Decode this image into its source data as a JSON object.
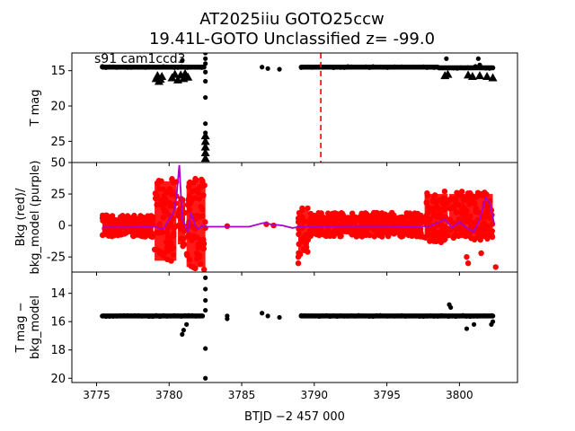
{
  "title_line1": "AT2025iiu  GOTO25ccw",
  "title_line2": "19.41L-GOTO Unclassified z= -99.0",
  "panel1_annotation": "s91 cam1ccd3",
  "xlabel": "BTJD −2 457 000",
  "x_ticks": [
    3775,
    3780,
    3785,
    3790,
    3795,
    3800
  ],
  "xlim": [
    3773.3,
    3804.0
  ],
  "colors": {
    "mag": "#000000",
    "bkg": "#ff0000",
    "model": "#aa00cc",
    "marker": "#ff0000"
  },
  "chart_data": [
    {
      "type": "scatter",
      "panel": "top",
      "ylabel": "T mag",
      "ylim": [
        28.0,
        12.5
      ],
      "inverted_y": true,
      "y_ticks": [
        15,
        20,
        25
      ],
      "vertical_marker_x": 3790.45,
      "series": [
        {
          "marker": "circle",
          "segments": [
            {
              "x0": 3775.4,
              "x1": 3780.9,
              "y": 14.5
            },
            {
              "x0": 3781.0,
              "x1": 3782.4,
              "y": 14.5
            },
            {
              "x0": 3789.1,
              "x1": 3798.5,
              "y": 14.5
            },
            {
              "x0": 3798.6,
              "x1": 3802.3,
              "y": 14.6
            }
          ],
          "points": [
            [
              3782.5,
              12.5
            ],
            [
              3782.5,
              13.3
            ],
            [
              3782.5,
              14.0
            ],
            [
              3782.5,
              15.2
            ],
            [
              3782.5,
              16.5
            ],
            [
              3782.5,
              18.8
            ],
            [
              3782.5,
              22.5
            ],
            [
              3782.5,
              23.8
            ],
            [
              3786.4,
              14.5
            ],
            [
              3786.8,
              14.7
            ],
            [
              3787.6,
              14.8
            ],
            [
              3780.9,
              13.6
            ],
            [
              3801.1,
              14.4
            ],
            [
              3801.4,
              14.2
            ],
            [
              3799.1,
              13.3
            ],
            [
              3801.3,
              13.3
            ]
          ]
        },
        {
          "marker": "triangle",
          "points": [
            [
              3779.1,
              16.1
            ],
            [
              3779.2,
              15.7
            ],
            [
              3779.3,
              16.5
            ],
            [
              3779.4,
              16.2
            ],
            [
              3779.5,
              15.8
            ],
            [
              3780.2,
              16.0
            ],
            [
              3780.4,
              15.5
            ],
            [
              3780.6,
              16.3
            ],
            [
              3780.8,
              15.6
            ],
            [
              3781.0,
              16.1
            ],
            [
              3781.1,
              15.4
            ],
            [
              3781.3,
              15.9
            ],
            [
              3782.5,
              24.2
            ],
            [
              3782.5,
              25.0
            ],
            [
              3782.5,
              25.8
            ],
            [
              3782.5,
              26.6
            ],
            [
              3782.5,
              27.4
            ],
            [
              3799.0,
              15.7
            ],
            [
              3799.2,
              15.5
            ],
            [
              3800.6,
              15.6
            ],
            [
              3800.9,
              15.8
            ],
            [
              3801.4,
              15.7
            ],
            [
              3801.9,
              15.8
            ],
            [
              3802.3,
              16.0
            ]
          ]
        }
      ]
    },
    {
      "type": "scatter",
      "panel": "middle",
      "ylabel": "Bkg (red)/\nbkg_model (purple)",
      "ylim": [
        -37.0,
        50.0
      ],
      "y_ticks": [
        50,
        25,
        0,
        -25
      ],
      "series": [
        {
          "name": "Bkg",
          "marker": "circle",
          "bands": [
            {
              "x0": 3775.4,
              "x1": 3778.9,
              "lo": -7,
              "hi": 6
            },
            {
              "x0": 3779.0,
              "x1": 3780.5,
              "lo": -28,
              "hi": 35
            },
            {
              "x0": 3780.6,
              "x1": 3781.1,
              "lo": -15,
              "hi": 20
            },
            {
              "x0": 3781.2,
              "x1": 3782.5,
              "lo": -33,
              "hi": 35
            },
            {
              "x0": 3788.9,
              "x1": 3789.6,
              "lo": -22,
              "hi": 12
            },
            {
              "x0": 3789.7,
              "x1": 3797.5,
              "lo": -7,
              "hi": 8
            },
            {
              "x0": 3797.6,
              "x1": 3799.2,
              "lo": -12,
              "hi": 25
            },
            {
              "x0": 3799.3,
              "x1": 3802.3,
              "lo": -10,
              "hi": 25
            }
          ],
          "points": [
            [
              3780.2,
              37
            ],
            [
              3781.7,
              34
            ],
            [
              3782.3,
              35
            ],
            [
              3788.9,
              -30
            ],
            [
              3788.9,
              -25
            ],
            [
              3800.5,
              -25
            ],
            [
              3800.6,
              -30
            ],
            [
              3801.5,
              -22
            ],
            [
              3802.5,
              -33
            ],
            [
              3784.0,
              -0.5
            ],
            [
              3786.7,
              1
            ],
            [
              3787.2,
              0
            ]
          ]
        },
        {
          "name": "bkg_model",
          "marker": "line",
          "x": [
            3775.4,
            3777.5,
            3779.0,
            3779.6,
            3780.0,
            3780.3,
            3780.5,
            3780.7,
            3780.9,
            3781.1,
            3781.3,
            3781.5,
            3781.8,
            3782.0,
            3782.3,
            3782.5,
            3783.0,
            3784.0,
            3785.5,
            3786.5,
            3787.0,
            3787.8,
            3788.5,
            3789.0,
            3790.0,
            3792.0,
            3795.0,
            3797.0,
            3798.0,
            3798.5,
            3799.0,
            3799.5,
            3800.0,
            3800.5,
            3801.0,
            3801.4,
            3801.8,
            3802.1,
            3802.4
          ],
          "y": [
            -1.5,
            -1.5,
            -1.0,
            -3.0,
            5.0,
            10.0,
            22.0,
            48.0,
            5.0,
            0.0,
            -5.0,
            10.0,
            0.0,
            -3.0,
            0.0,
            -1.0,
            -1.0,
            -1.0,
            -1.0,
            2.0,
            1.0,
            0.0,
            -2.0,
            -1.0,
            -1.0,
            -0.5,
            -0.5,
            -1.0,
            -0.5,
            2.0,
            5.0,
            -2.0,
            3.0,
            -2.0,
            -5.0,
            5.0,
            22.0,
            18.0,
            1.0
          ]
        }
      ]
    },
    {
      "type": "scatter",
      "panel": "bottom",
      "ylabel": "T mag −\nbkg_model",
      "ylim": [
        20.3,
        12.5
      ],
      "inverted_y": true,
      "y_ticks": [
        14,
        16,
        18,
        20
      ],
      "series": [
        {
          "marker": "circle",
          "segments": [
            {
              "x0": 3775.4,
              "x1": 3782.3,
              "y": 15.6
            },
            {
              "x0": 3789.1,
              "x1": 3802.3,
              "y": 15.6
            }
          ],
          "points": [
            [
              3782.5,
              12.9
            ],
            [
              3782.5,
              13.7
            ],
            [
              3782.5,
              14.5
            ],
            [
              3782.5,
              15.2
            ],
            [
              3782.5,
              17.9
            ],
            [
              3782.5,
              20.0
            ],
            [
              3781.2,
              16.2
            ],
            [
              3781.0,
              16.6
            ],
            [
              3780.9,
              16.9
            ],
            [
              3784.0,
              15.6
            ],
            [
              3784.0,
              15.8
            ],
            [
              3786.4,
              15.4
            ],
            [
              3786.8,
              15.6
            ],
            [
              3787.6,
              15.7
            ],
            [
              3799.3,
              14.8
            ],
            [
              3799.4,
              15.0
            ],
            [
              3800.5,
              16.5
            ],
            [
              3801.0,
              16.2
            ],
            [
              3802.2,
              16.2
            ],
            [
              3802.3,
              16.0
            ]
          ]
        }
      ]
    }
  ]
}
